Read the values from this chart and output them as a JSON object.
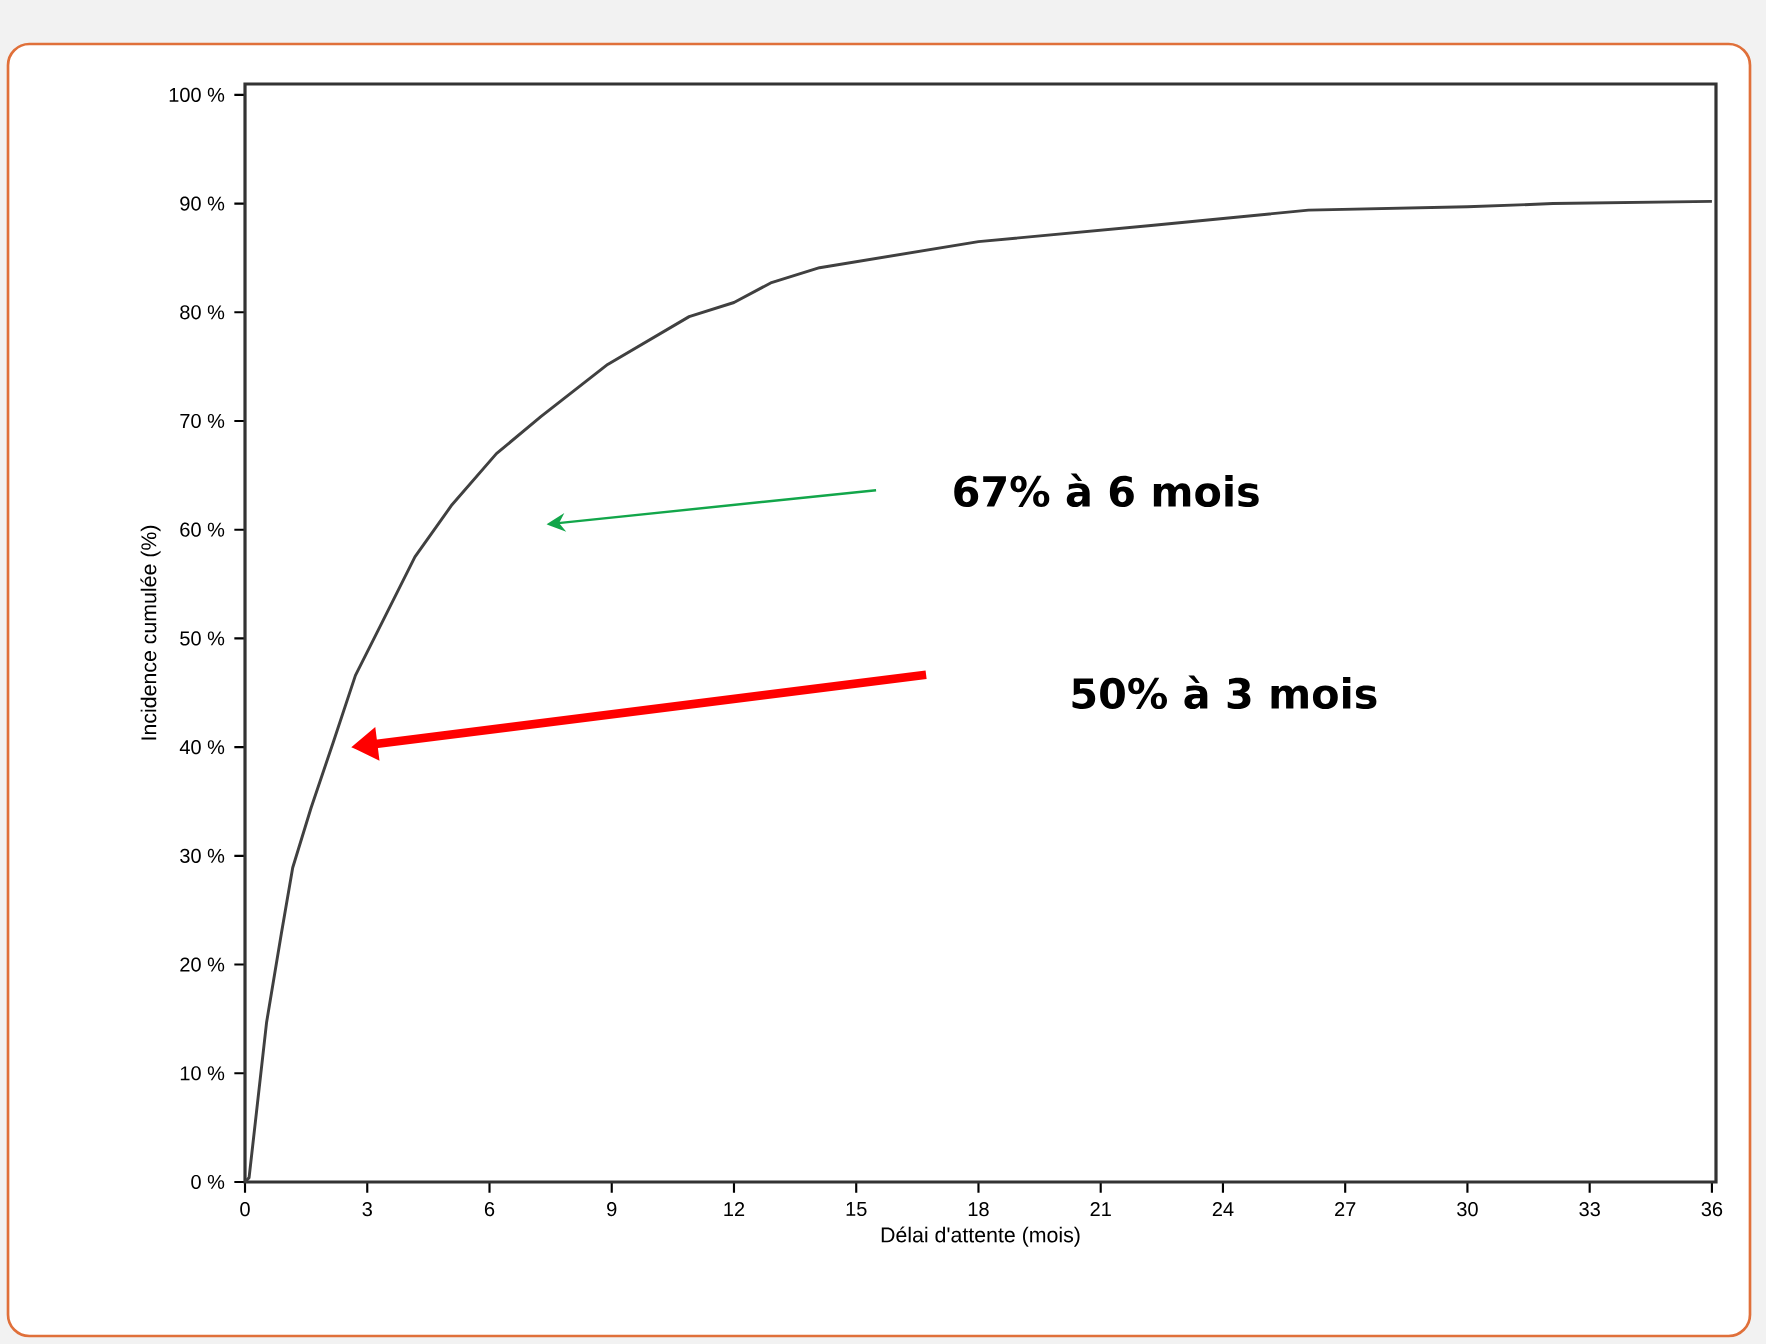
{
  "chart_data": {
    "type": "line",
    "xlabel": "Délai d'attente (mois)",
    "ylabel": "Incidence cumulée (%)",
    "x": [
      0,
      0.1,
      0.53,
      0.89,
      1.17,
      1.62,
      2.17,
      2.71,
      3.26,
      4.17,
      5.08,
      6.17,
      7.26,
      8.9,
      10.9,
      12.0,
      12.9,
      14.1,
      18.0,
      22.3,
      26.1,
      30.0,
      32.1,
      36.0
    ],
    "series": [
      {
        "color": "#404040",
        "values": [
          0,
          0.4,
          14.7,
          22.8,
          28.9,
          34.4,
          40.5,
          46.6,
          50.7,
          57.5,
          62.3,
          67.0,
          70.4,
          75.2,
          79.6,
          80.9,
          82.7,
          84.1,
          86.5,
          88.0,
          89.4,
          89.7,
          90.0,
          90.2
        ]
      }
    ],
    "xlim": [
      0,
      36.1
    ],
    "ylim": [
      0,
      101
    ],
    "xticks": [
      0,
      3,
      6,
      9,
      12,
      15,
      18,
      21,
      24,
      27,
      30,
      33,
      36
    ],
    "yticks": [
      {
        "value": 0,
        "label": "0 %"
      },
      {
        "value": 10,
        "label": "10 %"
      },
      {
        "value": 20,
        "label": "20 %"
      },
      {
        "value": 30,
        "label": "30 %"
      },
      {
        "value": 40,
        "label": "40 %"
      },
      {
        "value": 50,
        "label": "50 %"
      },
      {
        "value": 60,
        "label": "60 %"
      },
      {
        "value": 70,
        "label": "70 %"
      },
      {
        "value": 80,
        "label": "80 %"
      },
      {
        "value": 90,
        "label": "90 %"
      },
      {
        "value": 100,
        "label": "100 %"
      }
    ],
    "grid": false,
    "marker": "none",
    "line_style": "solid",
    "annotations": [
      "67% à 6 mois",
      "50% à 3 mois"
    ]
  }
}
